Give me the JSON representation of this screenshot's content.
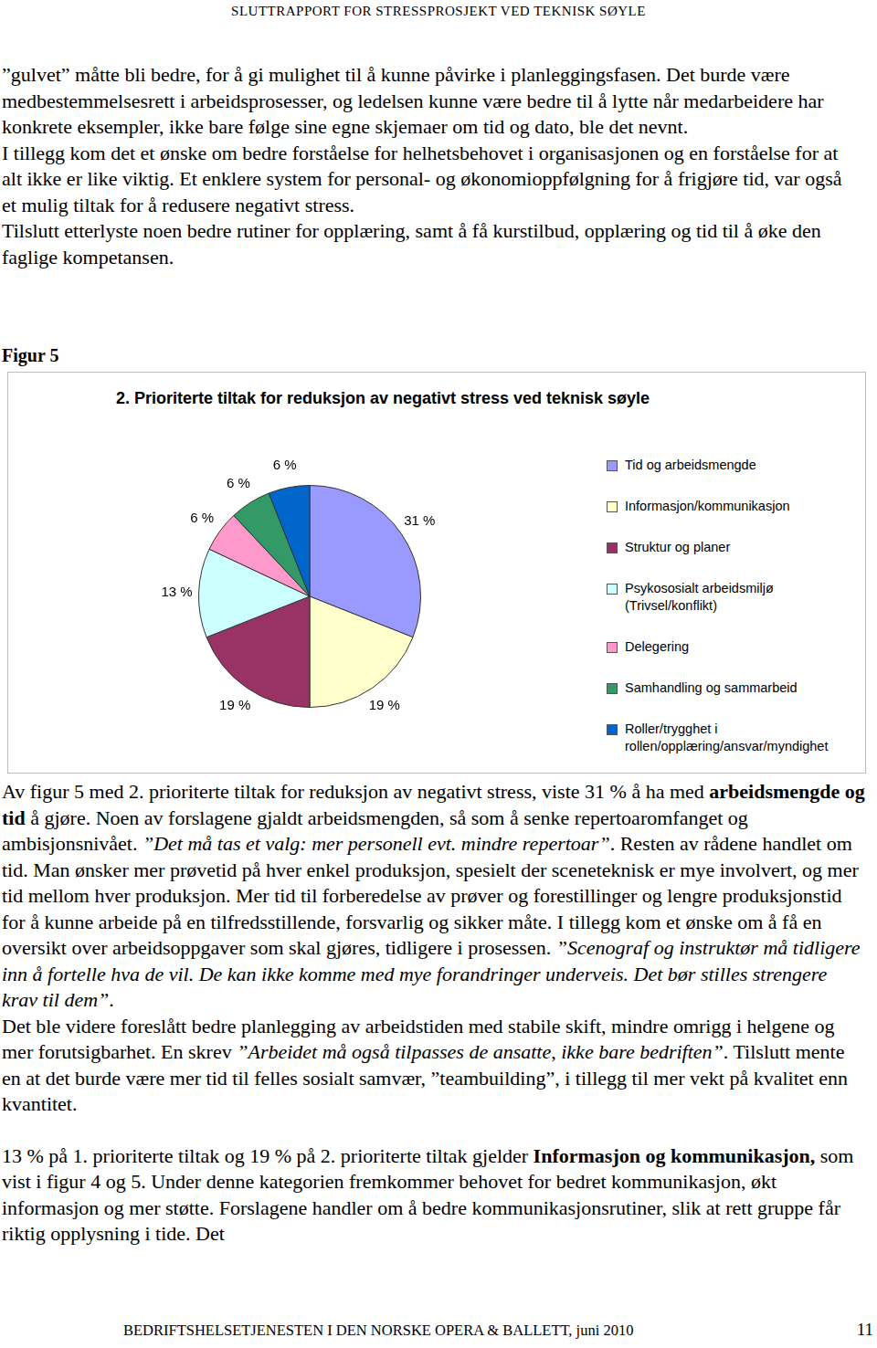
{
  "header": "SLUTTRAPPORT FOR STRESSPROSJEKT VED TEKNISK SØYLE",
  "paragraphs_top": [
    [
      {
        "text": "”gulvet” måtte bli bedre, for å gi mulighet til å kunne påvirke i planleggingsfasen. Det burde være medbestemmelsesrett i arbeidsprosesser, og ledelsen kunne være bedre til å lytte når medarbeidere har konkrete eksempler, ikke bare følge sine egne skjemaer om tid og dato, ble det nevnt."
      }
    ],
    [
      {
        "text": "I tillegg kom det et ønske om bedre forståelse for helhetsbehovet i organisasjonen og en forståelse for at alt ikke er like viktig. Et enklere system for personal- og økonomioppfølgning for å frigjøre tid, var også et mulig tiltak for å redusere negativt stress."
      }
    ],
    [
      {
        "text": "Tilslutt etterlyste noen bedre rutiner for opplæring, samt å få kurstilbud, opplæring og tid til å øke den faglige kompetansen."
      }
    ]
  ],
  "figure_label": "Figur 5",
  "chart_data": {
    "type": "pie",
    "title": "2. Prioriterte tiltak for reduksjon av negativt stress ved teknisk søyle",
    "categories": [
      "Tid og arbeidsmengde",
      "Informasjon/kommunikasjon",
      "Struktur og planer",
      "Psykososialt arbeidsmiljø (Trivsel/konflikt)",
      "Delegering",
      "Samhandling og sammarbeid",
      "Roller/trygghet i rollen/opplæring/ansvar/myndighet"
    ],
    "values": [
      31,
      19,
      19,
      13,
      6,
      6,
      6
    ],
    "value_labels": [
      "31 %",
      "19 %",
      "19 %",
      "13 %",
      "6 %",
      "6 %",
      "6 %"
    ],
    "colors": [
      "#9999ff",
      "#ffffcc",
      "#993366",
      "#ccffff",
      "#ff99cc",
      "#339966",
      "#0066cc"
    ],
    "data_labels": true,
    "legend": "right"
  },
  "paragraphs_bottom": [
    [
      {
        "text": "Av figur 5 med 2. prioriterte tiltak for reduksjon av negativt stress, viste 31 % å ha med "
      },
      {
        "text": "arbeidsmengde og tid",
        "bold": true
      },
      {
        "text": " å gjøre. Noen av forslagene gjaldt arbeidsmengden, så som å senke repertoaromfanget og ambisjonsnivået. "
      },
      {
        "text": "”Det må tas et valg: mer personell evt. mindre repertoar”",
        "italic": true
      },
      {
        "text": ". Resten av rådene handlet om tid. Man ønsker mer prøvetid på hver enkel produksjon, spesielt der sceneteknisk er mye involvert, og mer tid mellom hver produksjon. Mer tid til forberedelse av prøver og forestillinger og lengre produksjonstid for å kunne arbeide på en tilfredsstillende, forsvarlig og sikker måte. I tillegg kom et ønske om å få en oversikt over arbeidsoppgaver som skal gjøres, tidligere i prosessen. "
      },
      {
        "text": "”Scenograf og instruktør må tidligere inn å fortelle hva de vil. De kan ikke komme med mye forandringer underveis. Det bør stilles strengere krav til dem”",
        "italic": true
      },
      {
        "text": "."
      }
    ],
    [
      {
        "text": "Det ble videre foreslått bedre planlegging av arbeidstiden med stabile skift, mindre omrigg i helgene og mer forutsigbarhet. En skrev "
      },
      {
        "text": "”Arbeidet må også tilpasses de ansatte, ikke bare bedriften”",
        "italic": true
      },
      {
        "text": ". Tilslutt mente en at det burde være mer tid til felles sosialt samvær, ”teambuilding”, i tillegg til mer vekt på kvalitet enn kvantitet."
      }
    ],
    [
      {
        "text": "13 % på 1. prioriterte tiltak og 19 % på 2. prioriterte tiltak gjelder "
      },
      {
        "text": "Informasjon og kommunikasjon,",
        "bold": true
      },
      {
        "text": " som vist i figur 4 og 5. Under denne kategorien fremkommer behovet for bedret kommunikasjon, økt informasjon og mer støtte. Forslagene handler om å bedre kommunikasjonsrutiner, slik at rett gruppe får riktig opplysning i tide. Det"
      }
    ]
  ],
  "footer": {
    "text": "BEDRIFTSHELSETJENESTEN I DEN NORSKE OPERA & BALLETT, juni 2010",
    "page": "11"
  }
}
